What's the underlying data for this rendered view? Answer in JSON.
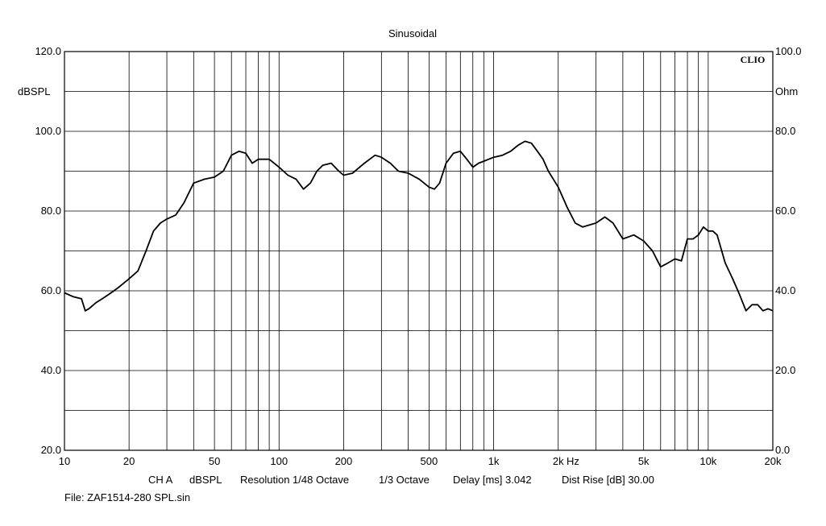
{
  "chart_data": {
    "type": "line",
    "title": "Sinusoidal",
    "logo": "CLIO",
    "x_scale": "log",
    "xlim": [
      10,
      20000
    ],
    "ylim": [
      20,
      120
    ],
    "y2lim": [
      0,
      100
    ],
    "ylabel": "dBSPL",
    "y2label": "Ohm",
    "x_unit": "Hz",
    "grid": true,
    "x_ticks": [
      {
        "value": 10,
        "label": "10"
      },
      {
        "value": 20,
        "label": "20"
      },
      {
        "value": 50,
        "label": "50"
      },
      {
        "value": 100,
        "label": "100"
      },
      {
        "value": 200,
        "label": "200"
      },
      {
        "value": 500,
        "label": "500"
      },
      {
        "value": 1000,
        "label": "1k"
      },
      {
        "value": 2000,
        "label": "2k"
      },
      {
        "value": 5000,
        "label": "5k"
      },
      {
        "value": 10000,
        "label": "10k"
      },
      {
        "value": 20000,
        "label": "20k"
      }
    ],
    "y_ticks": [
      {
        "value": 20,
        "label": "20.0"
      },
      {
        "value": 40,
        "label": "40.0"
      },
      {
        "value": 60,
        "label": "60.0"
      },
      {
        "value": 80,
        "label": "80.0"
      },
      {
        "value": 100,
        "label": "100.0"
      },
      {
        "value": 120,
        "label": "120.0"
      }
    ],
    "y2_ticks": [
      {
        "value": 0,
        "label": "0.0"
      },
      {
        "value": 20,
        "label": "20.0"
      },
      {
        "value": 40,
        "label": "40.0"
      },
      {
        "value": 60,
        "label": "60.0"
      },
      {
        "value": 80,
        "label": "80.0"
      },
      {
        "value": 100,
        "label": "100.0"
      }
    ],
    "series": [
      {
        "x": [
          10,
          11,
          12,
          12.5,
          13,
          14,
          15,
          16,
          17,
          18,
          20,
          22,
          24,
          26,
          28,
          30,
          33,
          36,
          40,
          45,
          50,
          55,
          60,
          65,
          70,
          75,
          80,
          90,
          100,
          110,
          120,
          130,
          140,
          150,
          160,
          175,
          190,
          200,
          220,
          250,
          280,
          300,
          330,
          360,
          400,
          450,
          500,
          530,
          560,
          600,
          650,
          700,
          750,
          800,
          850,
          900,
          1000,
          1100,
          1200,
          1300,
          1400,
          1500,
          1600,
          1700,
          1800,
          2000,
          2200,
          2400,
          2600,
          2800,
          3000,
          3300,
          3600,
          4000,
          4500,
          5000,
          5500,
          6000,
          6500,
          7000,
          7500,
          8000,
          8500,
          9000,
          9500,
          10000,
          10500,
          11000,
          12000,
          13000,
          14000,
          15000,
          16000,
          17000,
          18000,
          19000,
          20000
        ],
        "y": [
          59.5,
          58.5,
          58,
          55,
          55.5,
          57,
          58,
          59,
          60,
          61,
          63,
          65,
          70,
          75,
          77,
          78,
          79,
          82,
          87,
          88,
          88.5,
          90,
          94,
          95,
          94.5,
          92,
          93,
          93,
          91,
          89,
          88,
          85.5,
          87,
          90,
          91.5,
          92,
          90,
          89,
          89.5,
          92,
          94,
          93.5,
          92,
          90,
          89.5,
          88,
          86,
          85.5,
          87,
          92,
          94.5,
          95,
          93,
          91,
          92,
          92.5,
          93.5,
          94,
          95,
          96.5,
          97.5,
          97,
          95,
          93,
          90,
          86,
          81,
          77,
          76,
          76.5,
          77,
          78.5,
          77,
          73,
          74,
          72.5,
          70,
          66,
          67,
          68,
          67.5,
          73,
          73,
          74,
          76,
          75,
          75,
          74,
          67,
          63,
          59,
          55,
          56.5,
          56.5,
          55,
          55.5,
          55
        ]
      }
    ],
    "footer": {
      "channel": "CH A",
      "unit": "dBSPL",
      "resolution": "Resolution 1/48 Octave",
      "smoothing": "1/3 Octave",
      "delay": "Delay [ms] 3.042",
      "dist_rise": "Dist Rise [dB] 30.00"
    },
    "file": "File: ZAF1514-280 SPL.sin"
  }
}
